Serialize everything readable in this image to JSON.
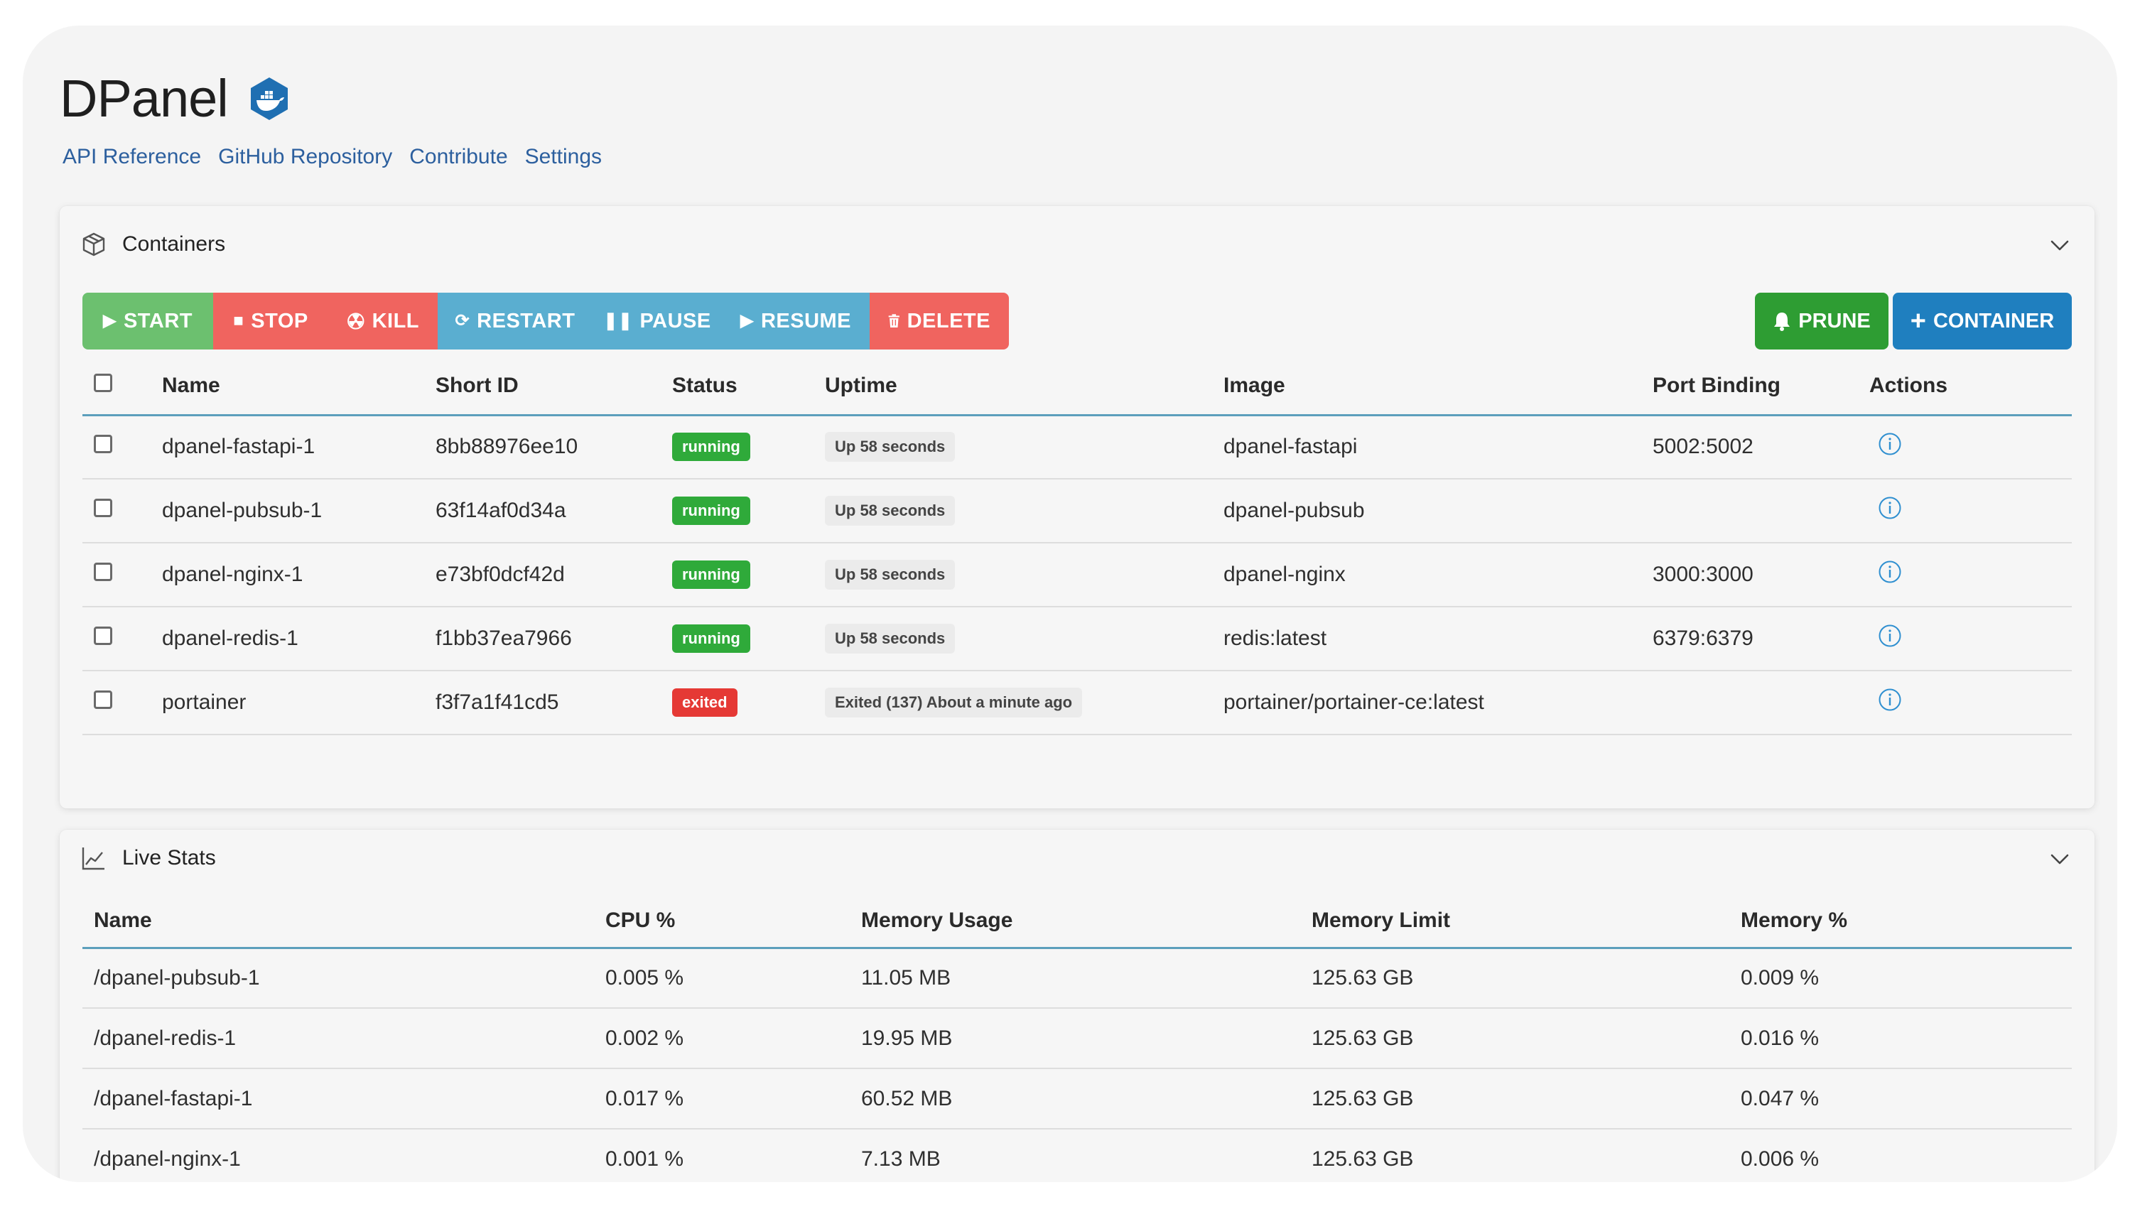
{
  "app": {
    "title": "DPanel"
  },
  "nav": [
    "API Reference",
    "GitHub Repository",
    "Contribute",
    "Settings"
  ],
  "colors": {
    "accent": "#1f7fbf",
    "start": "#6cc06f",
    "danger": "#f0645f",
    "info": "#5aaed0",
    "prune": "#2e9d33",
    "running": "#2faa3a",
    "exited": "#e53935",
    "link": "#2c5f9e"
  },
  "containers": {
    "title": "Containers",
    "toolbar": {
      "start": "START",
      "stop": "STOP",
      "kill": "KILL",
      "restart": "RESTART",
      "pause": "PAUSE",
      "resume": "RESUME",
      "delete": "DELETE",
      "prune": "PRUNE",
      "container": "CONTAINER"
    },
    "columns": {
      "name": "Name",
      "short_id": "Short ID",
      "status": "Status",
      "uptime": "Uptime",
      "image": "Image",
      "port_binding": "Port Binding",
      "actions": "Actions"
    },
    "rows": [
      {
        "name": "dpanel-fastapi-1",
        "short_id": "8bb88976ee10",
        "status": "running",
        "uptime": "Up 58 seconds",
        "image": "dpanel-fastapi",
        "port": "5002:5002"
      },
      {
        "name": "dpanel-pubsub-1",
        "short_id": "63f14af0d34a",
        "status": "running",
        "uptime": "Up 58 seconds",
        "image": "dpanel-pubsub",
        "port": ""
      },
      {
        "name": "dpanel-nginx-1",
        "short_id": "e73bf0dcf42d",
        "status": "running",
        "uptime": "Up 58 seconds",
        "image": "dpanel-nginx",
        "port": "3000:3000"
      },
      {
        "name": "dpanel-redis-1",
        "short_id": "f1bb37ea7966",
        "status": "running",
        "uptime": "Up 58 seconds",
        "image": "redis:latest",
        "port": "6379:6379"
      },
      {
        "name": "portainer",
        "short_id": "f3f7a1f41cd5",
        "status": "exited",
        "uptime": "Exited (137) About a minute ago",
        "image": "portainer/portainer-ce:latest",
        "port": ""
      }
    ]
  },
  "live_stats": {
    "title": "Live Stats",
    "columns": {
      "name": "Name",
      "cpu": "CPU %",
      "mem_usage": "Memory Usage",
      "mem_limit": "Memory Limit",
      "mem_pct": "Memory %"
    },
    "rows": [
      {
        "name": "/dpanel-pubsub-1",
        "cpu": "0.005 %",
        "mem_usage": "11.05 MB",
        "mem_limit": "125.63 GB",
        "mem_pct": "0.009 %"
      },
      {
        "name": "/dpanel-redis-1",
        "cpu": "0.002 %",
        "mem_usage": "19.95 MB",
        "mem_limit": "125.63 GB",
        "mem_pct": "0.016 %"
      },
      {
        "name": "/dpanel-fastapi-1",
        "cpu": "0.017 %",
        "mem_usage": "60.52 MB",
        "mem_limit": "125.63 GB",
        "mem_pct": "0.047 %"
      },
      {
        "name": "/dpanel-nginx-1",
        "cpu": "0.001 %",
        "mem_usage": "7.13 MB",
        "mem_limit": "125.63 GB",
        "mem_pct": "0.006 %"
      }
    ]
  }
}
